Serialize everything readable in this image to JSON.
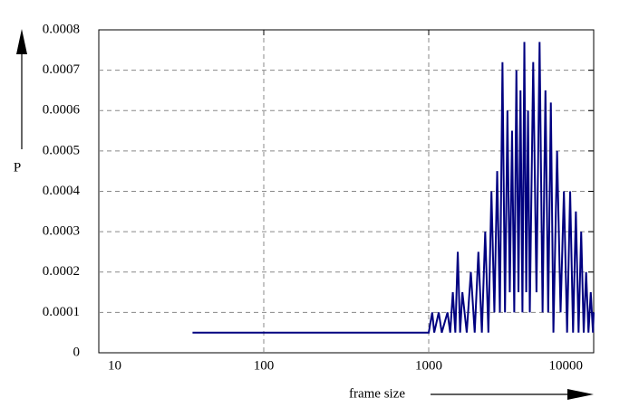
{
  "chart_data": {
    "type": "line",
    "x_label": "frame size",
    "y_label": "P",
    "xlim": [
      10,
      10000
    ],
    "xticks": [
      10,
      100,
      1000,
      10000
    ],
    "xlog": true,
    "ylim": [
      0,
      0.0008
    ],
    "yticks": [
      0,
      0.0001,
      0.0002,
      0.0003,
      0.0004,
      0.0005,
      0.0006,
      0.0007,
      0.0008
    ],
    "grid": true,
    "series": [
      {
        "color": "#000080",
        "x": [
          37,
          1000,
          1050,
          1080,
          1150,
          1200,
          1300,
          1350,
          1400,
          1450,
          1500,
          1550,
          1600,
          1700,
          1800,
          1900,
          2000,
          2100,
          2200,
          2300,
          2400,
          2500,
          2600,
          2700,
          2800,
          2900,
          3000,
          3100,
          3200,
          3300,
          3400,
          3500,
          3600,
          3700,
          3800,
          3900,
          4000,
          4100,
          4300,
          4500,
          4700,
          4900,
          5100,
          5300,
          5500,
          5700,
          6000,
          6300,
          6600,
          6900,
          7200,
          7500,
          7800,
          8100,
          8400,
          8700,
          9000,
          9300,
          9600,
          9900,
          10000
        ],
        "values": [
          5e-05,
          5e-05,
          0.0001,
          5e-05,
          0.0001,
          5e-05,
          0.0001,
          5e-05,
          0.00015,
          5e-05,
          0.00025,
          5e-05,
          0.00015,
          5e-05,
          0.0002,
          5e-05,
          0.00025,
          5e-05,
          0.0003,
          5e-05,
          0.0004,
          0.0001,
          0.00045,
          0.0001,
          0.00072,
          0.0001,
          0.0006,
          0.00015,
          0.00055,
          0.0001,
          0.0007,
          0.00015,
          0.00065,
          0.0001,
          0.00077,
          0.00015,
          0.0006,
          0.0001,
          0.00072,
          0.00015,
          0.00077,
          0.0001,
          0.00065,
          0.0001,
          0.00062,
          5e-05,
          0.0005,
          0.0001,
          0.0004,
          5e-05,
          0.0004,
          5e-05,
          0.00035,
          5e-05,
          0.0003,
          5e-05,
          0.0002,
          5e-05,
          0.00015,
          5e-05,
          0.0001
        ]
      }
    ]
  }
}
